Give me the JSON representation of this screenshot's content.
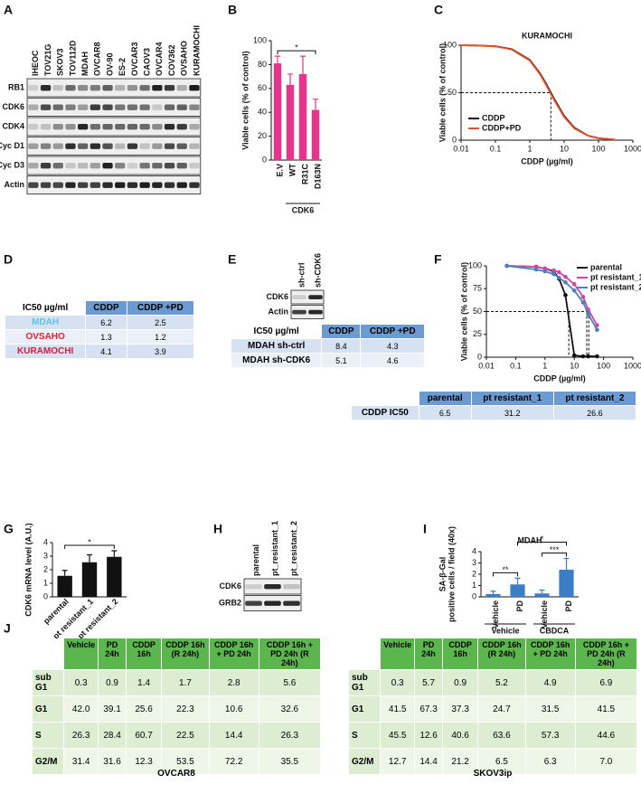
{
  "panel_a": {
    "letter": "A",
    "lanes": [
      "IHEOC",
      "TOV21G",
      "SKOV3",
      "TOV112D",
      "MDAH",
      "OVCAR8",
      "OV-90",
      "ES-2",
      "OVCAR3",
      "CAOV3",
      "OVCAR4",
      "COV362",
      "OVSAHO",
      "KURAMOCHI"
    ],
    "rows": [
      "RB1",
      "CDK6",
      "CDK4",
      "Cyc D1",
      "Cyc D3",
      "Actin"
    ]
  },
  "panel_b": {
    "letter": "B",
    "type": "bar",
    "ylabel": "Viable cells (% of control)",
    "categories": [
      "E.V",
      "WT",
      "R31C",
      "D163N"
    ],
    "values": [
      81,
      63,
      72,
      42
    ],
    "errors": [
      6,
      9,
      15,
      9
    ],
    "color": "#e6358b",
    "ylim": [
      0,
      100
    ],
    "yticks": [
      0,
      20,
      40,
      60,
      80,
      100
    ],
    "groups": [
      {
        "label": "CDK6",
        "from": 1,
        "to": 3
      }
    ],
    "significance": [
      {
        "label": "*",
        "from": 0,
        "to": 3
      }
    ]
  },
  "panel_c": {
    "letter": "C",
    "type": "line",
    "title": "KURAMOCHI",
    "xlabel": "CDDP (µg/ml)",
    "ylabel": "Viable cells (% of control)",
    "xscale": "log",
    "xlim": [
      0.01,
      1000
    ],
    "xticks": [
      0.01,
      0.1,
      1,
      10,
      100,
      1000
    ],
    "ylim": [
      0,
      100
    ],
    "yticks": [
      0,
      50,
      100
    ],
    "reference_y": 50,
    "legend": "lower-left",
    "x": [
      0.01,
      0.03,
      0.1,
      0.3,
      1,
      2,
      3,
      5,
      10,
      20,
      50,
      100,
      300
    ],
    "series": [
      {
        "name": "CDDP",
        "color": "#111111",
        "values": [
          99.9,
          99.7,
          98.9,
          95.8,
          84.5,
          70.3,
          59.3,
          44.1,
          25.5,
          13.0,
          4.7,
          2.1,
          0.6
        ]
      },
      {
        "name": "CDDP+PD",
        "color": "#e8502a",
        "values": [
          99.9,
          99.7,
          98.8,
          95.4,
          83.8,
          69.2,
          58.0,
          42.8,
          24.4,
          12.3,
          4.5,
          2.0,
          0.6
        ]
      }
    ]
  },
  "panel_d": {
    "letter": "D",
    "corner": "IC50 µg/ml",
    "columns": [
      "CDDP",
      "CDDP +PD"
    ],
    "rows": [
      {
        "label": "MDAH",
        "color": "#5bc4ee",
        "values": [
          6.2,
          2.5
        ]
      },
      {
        "label": "OVSAHO",
        "color": "#d7262f",
        "values": [
          1.3,
          1.2
        ]
      },
      {
        "label": "KURAMOCHI",
        "color": "#d11f3f",
        "values": [
          4.1,
          3.9
        ]
      }
    ]
  },
  "panel_e": {
    "letter": "E",
    "lanes": [
      "sh-ctrl",
      "sh-CDK6"
    ],
    "rows": [
      "CDK6",
      "Actin"
    ],
    "table": {
      "corner": "IC50 µg/ml",
      "columns": [
        "CDDP",
        "CDDP +PD"
      ],
      "rows": [
        {
          "label": "MDAH sh-ctrl",
          "values": [
            8.4,
            4.3
          ]
        },
        {
          "label": "MDAH sh-CDK6",
          "values": [
            5.1,
            4.6
          ]
        }
      ]
    }
  },
  "panel_f": {
    "letter": "F",
    "type": "line",
    "xlabel": "CDDP (µg/ml)",
    "ylabel": "Viable cells (% of control)",
    "xscale": "log",
    "xlim": [
      0.01,
      1000
    ],
    "xticks": [
      0.01,
      0.1,
      1,
      10,
      100,
      1000
    ],
    "ylim": [
      0,
      100
    ],
    "yticks": [
      0,
      25,
      50,
      75,
      100
    ],
    "reference_y": 50,
    "legend": "upper-right",
    "markers": true,
    "x": [
      0.05,
      0.5,
      1,
      2,
      3,
      5,
      10,
      20,
      30,
      60
    ],
    "series": [
      {
        "name": "parental",
        "color": "#111111",
        "values": [
          100,
          99,
          97,
          94,
          86,
          68,
          2,
          1,
          1,
          1
        ]
      },
      {
        "name": "pt resistant_1",
        "color": "#d147a3",
        "values": [
          100,
          99,
          97,
          95,
          93,
          88,
          80,
          66,
          52,
          35
        ]
      },
      {
        "name": "pt resistant_2",
        "color": "#4a7fc1",
        "values": [
          100,
          96,
          94,
          91,
          87,
          82,
          73,
          60,
          47,
          30
        ]
      }
    ],
    "table": {
      "columns": [
        "parental",
        "pt resistant_1",
        "pt resistant_2"
      ],
      "rows": [
        {
          "label": "CDDP IC50",
          "values": [
            6.5,
            31.2,
            26.6
          ]
        }
      ]
    }
  },
  "panel_g": {
    "letter": "G",
    "type": "bar",
    "ylabel": "CDK6 mRNA level (A.U.)",
    "categories": [
      "parental",
      "pt resistant_1",
      "pt resistant_2"
    ],
    "values": [
      1.55,
      2.55,
      2.95
    ],
    "errors": [
      0.4,
      0.55,
      0.45
    ],
    "color": "#111111",
    "ylim": [
      0,
      4
    ],
    "yticks": [
      0,
      1,
      2,
      3,
      4
    ],
    "significance": [
      {
        "label": "*",
        "from": 0,
        "to": 2
      }
    ]
  },
  "panel_h": {
    "letter": "H",
    "lanes": [
      "parental",
      "pt_resistant_1",
      "pt_resistant_2"
    ],
    "rows": [
      "CDK6",
      "GRB2"
    ]
  },
  "panel_i": {
    "letter": "I",
    "type": "bar",
    "title": "MDAH",
    "ylabel": [
      "SA-β-Gal",
      "positive cells / field (40x)"
    ],
    "categories": [
      "Vehicle",
      "PD",
      "Vehicle",
      "PD"
    ],
    "values": [
      0.25,
      1.1,
      0.3,
      2.4
    ],
    "errors": [
      0.25,
      0.55,
      0.3,
      1.0
    ],
    "color": "#3d7dc6",
    "ylim": [
      0,
      4
    ],
    "yticks": [
      0,
      1,
      2,
      3,
      4
    ],
    "groups": [
      {
        "label": "Vehicle",
        "from": 0,
        "to": 1
      },
      {
        "label": "CBDCA",
        "from": 2,
        "to": 3
      }
    ],
    "significance": [
      {
        "label": "**",
        "from": 0,
        "to": 1
      },
      {
        "label": "***",
        "from": 2,
        "to": 3
      },
      {
        "label": "*",
        "from": 1,
        "to": 3
      }
    ]
  },
  "panel_j": {
    "letter": "J",
    "columns": [
      "Vehicle",
      "PD 24h",
      "CDDP 16h",
      "CDDP 16h (R 24h)",
      "CDDP 16h + PD 24h",
      "CDDP 16h + PD 24h (R 24h)"
    ],
    "tables": [
      {
        "title": "OVCAR8",
        "rows": [
          {
            "label": "sub G1",
            "values": [
              "0.3",
              "0.9",
              "1.4",
              "1.7",
              "2.8",
              "5.6"
            ]
          },
          {
            "label": "G1",
            "values": [
              "42.0",
              "39.1",
              "25.6",
              "22.3",
              "10.6",
              "32.6"
            ]
          },
          {
            "label": "S",
            "values": [
              "26.3",
              "28.4",
              "60.7",
              "22.5",
              "14.4",
              "26.3"
            ]
          },
          {
            "label": "G2/M",
            "values": [
              "31.4",
              "31.6",
              "12.3",
              "53.5",
              "72.2",
              "35.5"
            ]
          }
        ]
      },
      {
        "title": "SKOV3ip",
        "rows": [
          {
            "label": "sub G1",
            "values": [
              "0.3",
              "5.7",
              "0.9",
              "5.2",
              "4.9",
              "6.9"
            ]
          },
          {
            "label": "G1",
            "values": [
              "41.5",
              "67.3",
              "37.3",
              "24.7",
              "31.5",
              "41.5"
            ]
          },
          {
            "label": "S",
            "values": [
              "45.5",
              "12.6",
              "40.6",
              "63.6",
              "57.3",
              "44.6"
            ]
          },
          {
            "label": "G2/M",
            "values": [
              "12.7",
              "14.4",
              "21.2",
              "6.5",
              "6.3",
              "7.0"
            ]
          }
        ]
      }
    ]
  }
}
